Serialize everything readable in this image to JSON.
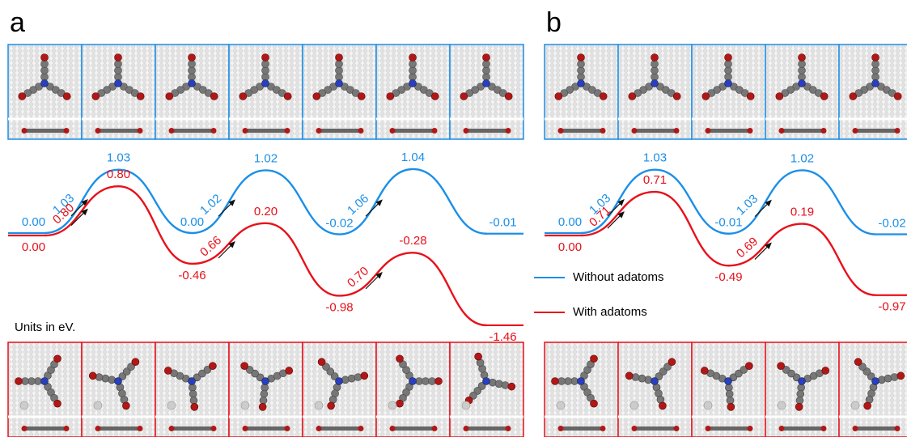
{
  "chart_data": [
    {
      "type": "energy-profile",
      "panel": "a",
      "note": "Units in eV.",
      "series": [
        {
          "color": "#1a8fe8",
          "values": [
            0,
            1.03,
            0,
            1.02,
            -0.02,
            1.04,
            -0.01
          ],
          "value_labels": [
            "0.00",
            "1.03",
            "0.00",
            "1.02",
            "-0.02",
            "1.04",
            "-0.01"
          ],
          "barriers": [
            1.03,
            1.02,
            1.06
          ],
          "barrier_labels": [
            "1.03",
            "1.02",
            "1.06"
          ]
        },
        {
          "color": "#e8101a",
          "values": [
            0,
            0.8,
            -0.46,
            0.2,
            -0.98,
            -0.28,
            -1.46
          ],
          "value_labels": [
            "0.00",
            "0.80",
            "-0.46",
            "0.20",
            "-0.98",
            "-0.28",
            "-1.46"
          ],
          "barriers": [
            0.8,
            0.66,
            0.7
          ],
          "barrier_labels": [
            "0.80",
            "0.66",
            "0.70"
          ]
        }
      ]
    },
    {
      "type": "energy-profile",
      "panel": "b",
      "series": [
        {
          "name": "Without adatoms",
          "color": "#1a8fe8",
          "values": [
            0,
            1.03,
            -0.01,
            1.02,
            -0.02
          ],
          "value_labels": [
            "0.00",
            "1.03",
            "-0.01",
            "1.02",
            "-0.02"
          ],
          "barriers": [
            1.03,
            1.03
          ],
          "barrier_labels": [
            "1.03",
            "1.03"
          ]
        },
        {
          "name": "With adatoms",
          "color": "#e8101a",
          "values": [
            0,
            0.71,
            -0.49,
            0.19,
            -0.97
          ],
          "value_labels": [
            "0.00",
            "0.71",
            "-0.49",
            "0.19",
            "-0.97"
          ],
          "barriers": [
            0.71,
            0.69
          ],
          "barrier_labels": [
            "0.71",
            "0.69"
          ]
        }
      ]
    }
  ]
}
